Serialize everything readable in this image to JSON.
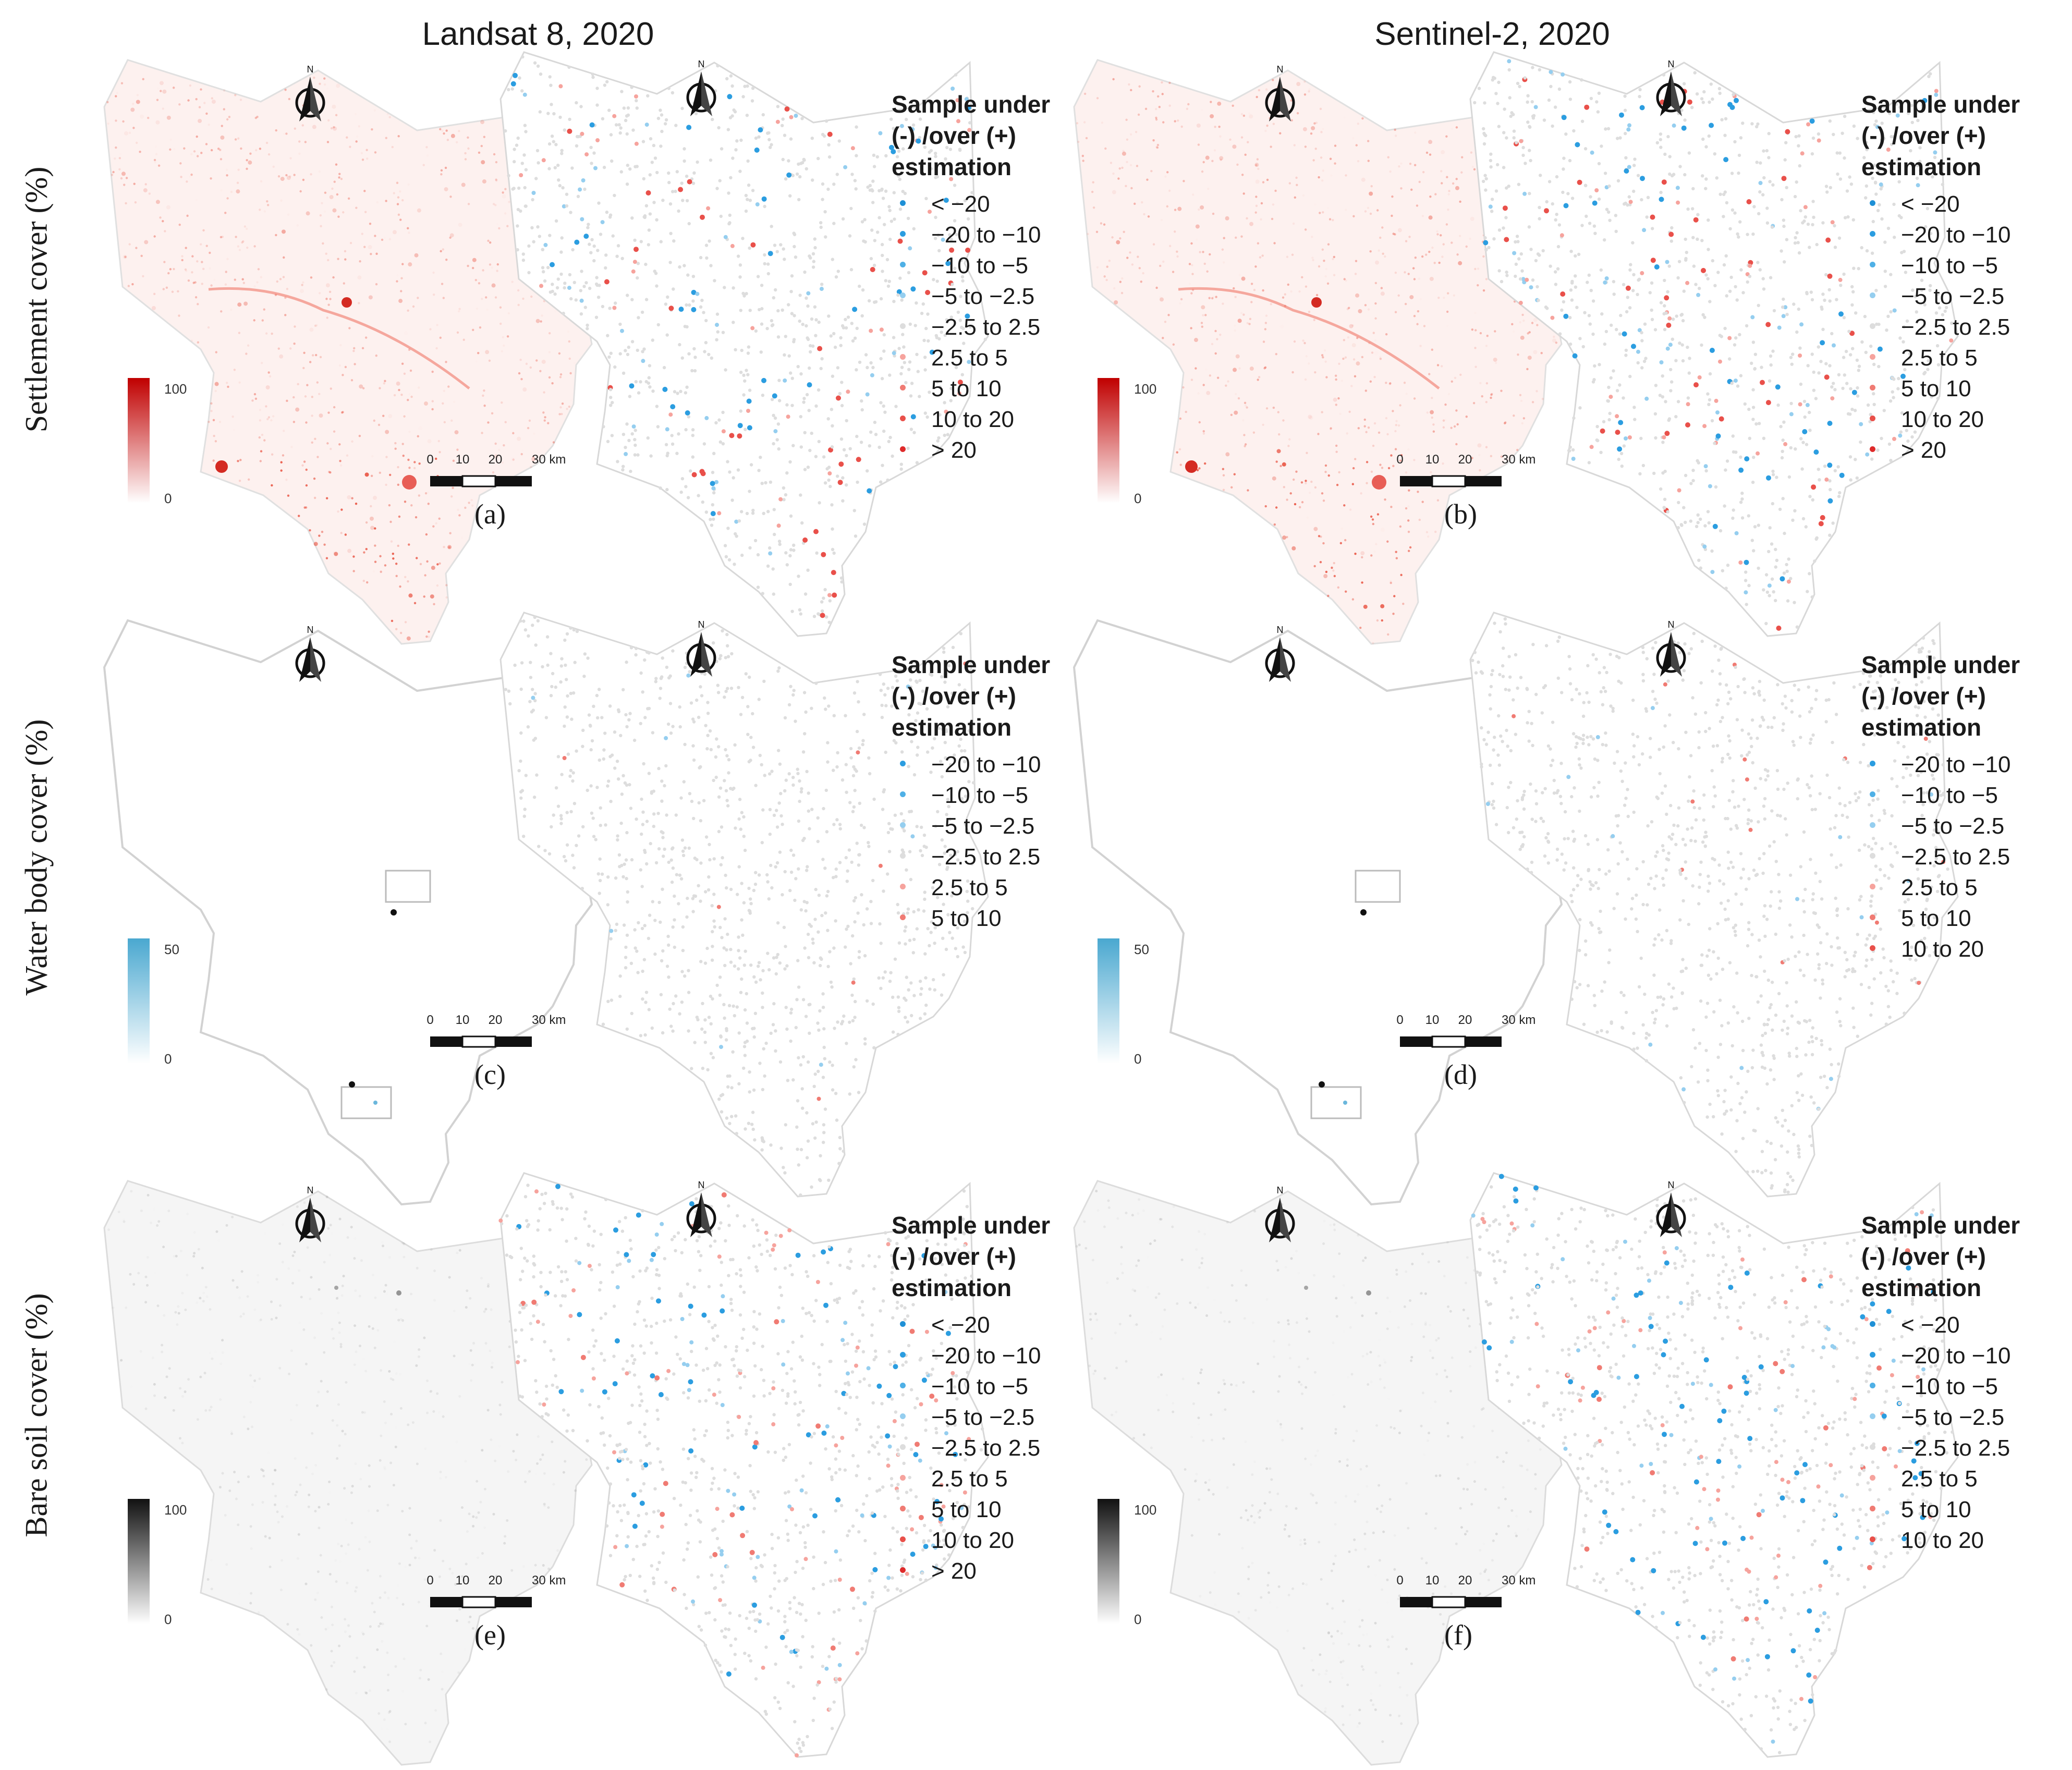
{
  "columns": [
    {
      "title": "Landsat 8, 2020"
    },
    {
      "title": "Sentinel-2, 2020"
    }
  ],
  "rows": [
    {
      "label": "Settlement cover (%)",
      "colorbar": {
        "min": "0",
        "max": "100",
        "color": "#c00000"
      }
    },
    {
      "label": "Water body cover (%)",
      "colorbar": {
        "min": "0",
        "max": "50",
        "color": "#4aa8d0"
      }
    },
    {
      "label": "Bare soil cover (%)",
      "colorbar": {
        "min": "0",
        "max": "100",
        "color": "#111111"
      }
    }
  ],
  "scale_bar": {
    "ticks": [
      "0",
      "10",
      "20",
      "30 km"
    ]
  },
  "north_arrow": {
    "letter": "N"
  },
  "legend_title_lines": [
    "Sample under",
    "(-) /over (+)",
    "estimation"
  ],
  "panels": [
    {
      "id": "a",
      "label": "(a)",
      "legend": [
        "< −20",
        "−20 to −10",
        "−10 to −5",
        "−5 to −2.5",
        "−2.5 to 2.5",
        "2.5 to 5",
        "5 to 10",
        "10 to 20",
        "> 20"
      ]
    },
    {
      "id": "b",
      "label": "(b)",
      "legend": [
        "< −20",
        "−20 to −10",
        "−10 to −5",
        "−5 to −2.5",
        "−2.5 to 2.5",
        "2.5 to 5",
        "5 to 10",
        "10 to 20",
        "> 20"
      ]
    },
    {
      "id": "c",
      "label": "(c)",
      "legend": [
        "−20 to −10",
        "−10 to −5",
        "−5 to −2.5",
        "−2.5 to 2.5",
        "2.5 to 5",
        "5 to 10"
      ]
    },
    {
      "id": "d",
      "label": "(d)",
      "legend": [
        "−20 to −10",
        "−10 to −5",
        "−5 to −2.5",
        "−2.5 to 2.5",
        "2.5 to 5",
        "5 to 10",
        "10 to 20"
      ]
    },
    {
      "id": "e",
      "label": "(e)",
      "legend": [
        "< −20",
        "−20 to −10",
        "−10 to −5",
        "−5 to −2.5",
        "−2.5 to 2.5",
        "2.5 to 5",
        "5 to 10",
        "10 to 20",
        "> 20"
      ]
    },
    {
      "id": "f",
      "label": "(f)",
      "legend": [
        "< −20",
        "−20 to −10",
        "−10 to −5",
        "−5 to −2.5",
        "−2.5 to 2.5",
        "2.5 to 5",
        "5 to 10",
        "10 to 20"
      ]
    }
  ],
  "class_colors": {
    "< −20": "#1e90d6",
    "−20 to −10": "#2b9de0",
    "−10 to −5": "#4fb0e6",
    "−5 to −2.5": "#95ceef",
    "−2.5 to 2.5": "#dddddd",
    "2.5 to 5": "#f6a39d",
    "5 to 10": "#f07b73",
    "10 to 20": "#e9504a",
    "> 20": "#de2a2a"
  }
}
